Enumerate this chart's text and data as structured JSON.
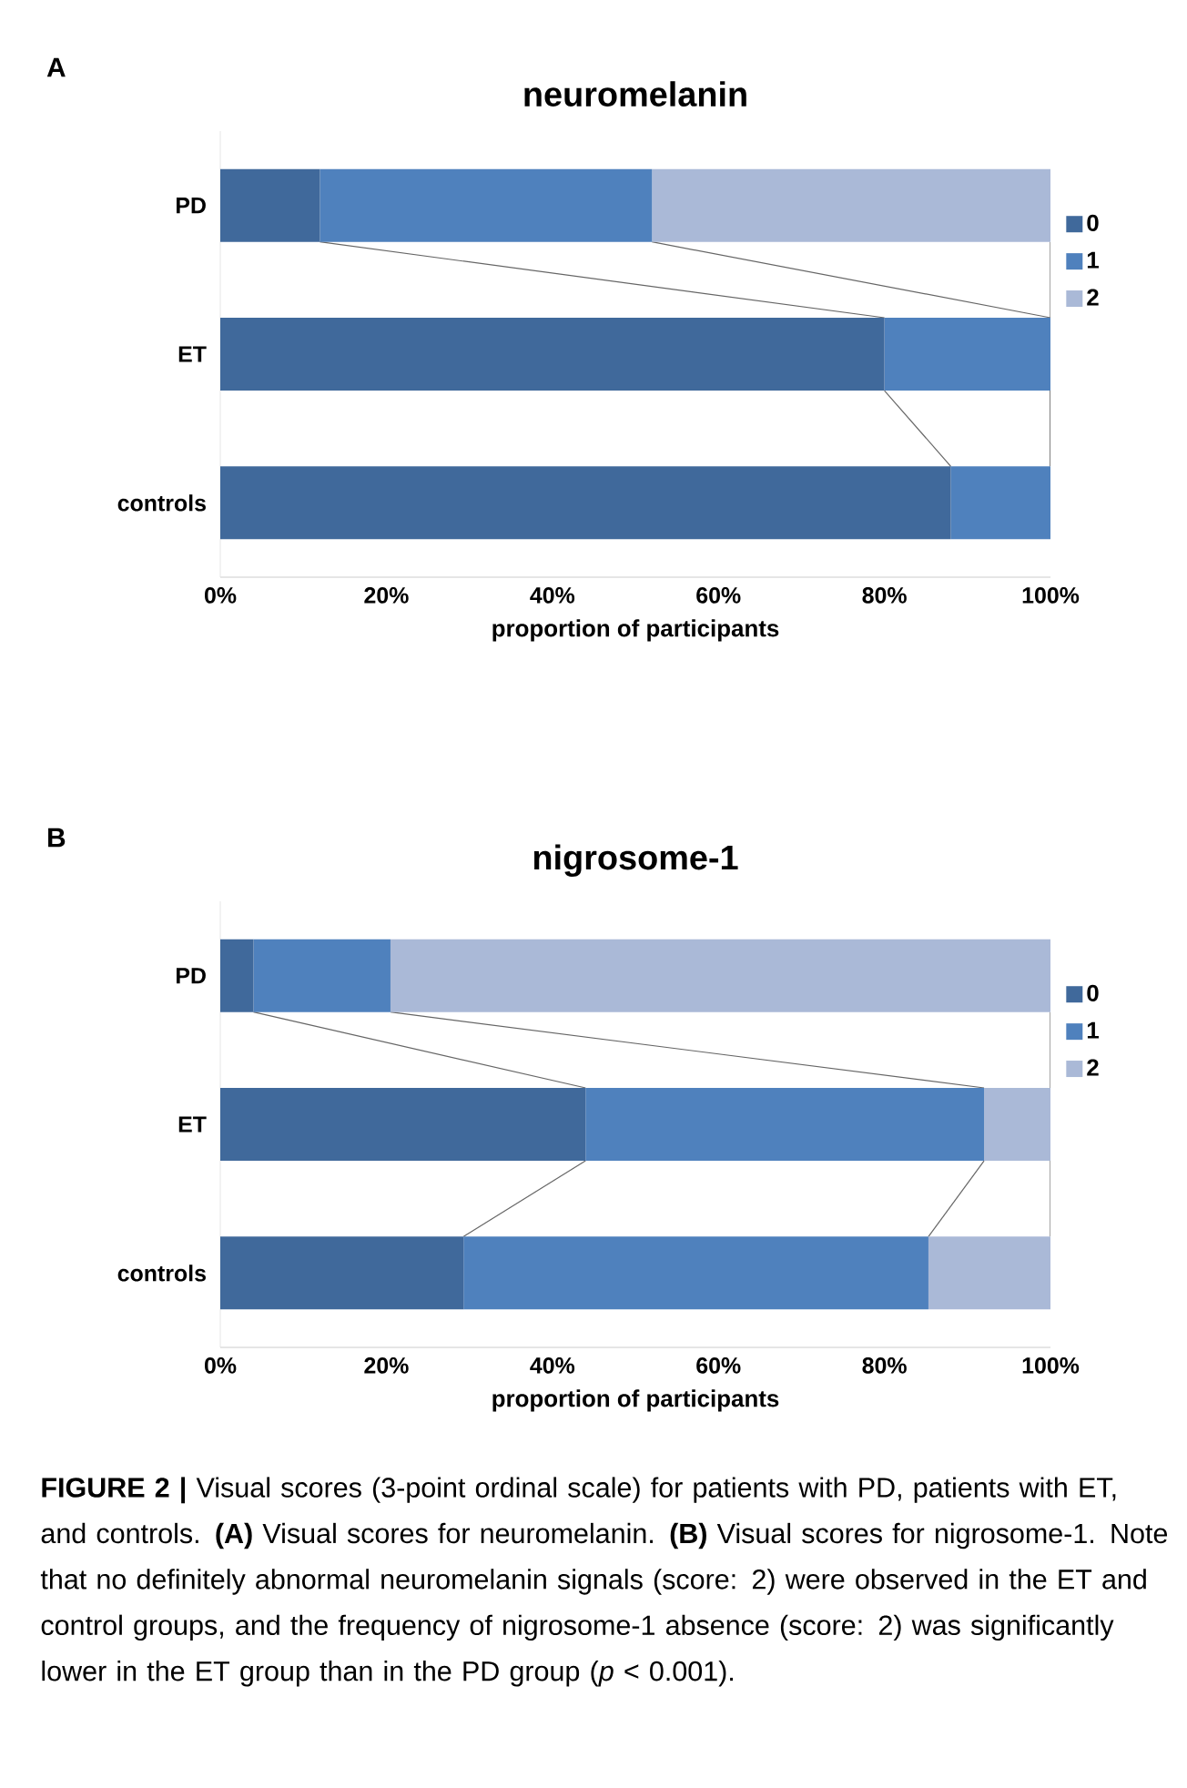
{
  "chart_data": [
    {
      "type": "bar",
      "orientation": "horizontal",
      "stacked": true,
      "title": "neuromelanin",
      "xlabel": "proportion of participants",
      "annotations": [
        "A"
      ],
      "categories": [
        "PD",
        "ET",
        "controls"
      ],
      "series": [
        {
          "name": "0",
          "color": "#40699b",
          "values": [
            12,
            80,
            88
          ]
        },
        {
          "name": "1",
          "color": "#4f81bd",
          "values": [
            40,
            20,
            12
          ]
        },
        {
          "name": "2",
          "color": "#aab9d7",
          "values": [
            48,
            0,
            0
          ]
        }
      ],
      "xlim": [
        0,
        100
      ],
      "xticks": [
        {
          "value": 0,
          "label": "0%"
        },
        {
          "value": 20,
          "label": "20%"
        },
        {
          "value": 40,
          "label": "40%"
        },
        {
          "value": 60,
          "label": "60%"
        },
        {
          "value": 80,
          "label": "80%"
        },
        {
          "value": 100,
          "label": "100%"
        }
      ],
      "legend": "right"
    },
    {
      "type": "bar",
      "orientation": "horizontal",
      "stacked": true,
      "title": "nigrosome-1",
      "xlabel": "proportion of participants",
      "annotations": [
        "B",
        "**FIGURE 2 |** Visual scores (3-point ordinal scale) for patients with PD, patients with ET, and controls. **(A)** Visual scores for neuromelanin. **(B)** Visual scores for nigrosome-1. Note that no definitely abnormal neuromelanin signals (score: 2) were observed in the ET and control groups, and the frequency of nigrosome-1 absence (score: 2) was significantly lower in the ET group than in the PD group (*p* < 0.001)."
      ],
      "categories": [
        "PD",
        "ET",
        "controls"
      ],
      "series": [
        {
          "name": "0",
          "color": "#40699b",
          "values": [
            4,
            44,
            29.3
          ]
        },
        {
          "name": "1",
          "color": "#4f81bd",
          "values": [
            16.5,
            48,
            56
          ]
        },
        {
          "name": "2",
          "color": "#aab9d7",
          "values": [
            79.5,
            8,
            14.7
          ]
        }
      ],
      "xlim": [
        0,
        100
      ],
      "xticks": [
        {
          "value": 0,
          "label": "0%"
        },
        {
          "value": 20,
          "label": "20%"
        },
        {
          "value": 40,
          "label": "40%"
        },
        {
          "value": 60,
          "label": "60%"
        },
        {
          "value": 80,
          "label": "80%"
        },
        {
          "value": 100,
          "label": "100%"
        }
      ],
      "legend": "right"
    }
  ]
}
